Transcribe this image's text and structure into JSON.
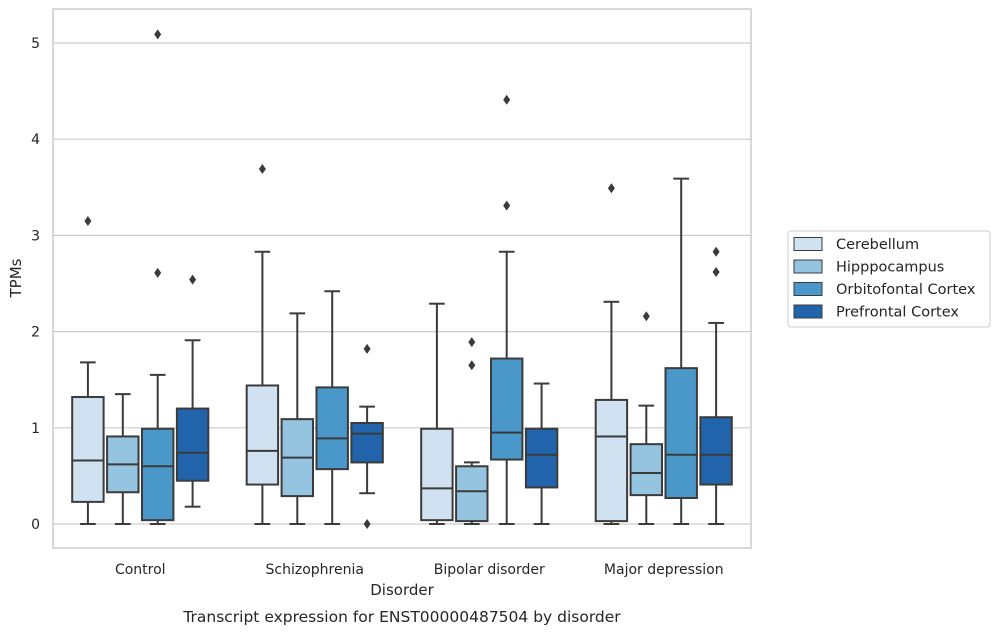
{
  "chart_data": {
    "type": "box",
    "xlabel": "Disorder",
    "ylabel": "TPMs",
    "caption": "Transcript expression for ENST00000487504 by disorder",
    "ylim": [
      -0.25,
      5.35
    ],
    "yticks": [
      0,
      1,
      2,
      3,
      4,
      5
    ],
    "grid": "horizontal",
    "legend_position": "right",
    "categories": [
      "Control",
      "Schizophrenia",
      "Bipolar disorder",
      "Major depression"
    ],
    "series": [
      {
        "name": "Cerebellum",
        "color": "#d0e1f2",
        "boxes": [
          {
            "whislo": 0.0,
            "q1": 0.23,
            "med": 0.66,
            "q3": 1.32,
            "whishi": 1.68,
            "fliers": [
              3.15
            ]
          },
          {
            "whislo": 0.0,
            "q1": 0.41,
            "med": 0.76,
            "q3": 1.44,
            "whishi": 2.83,
            "fliers": [
              3.69
            ]
          },
          {
            "whislo": 0.0,
            "q1": 0.04,
            "med": 0.37,
            "q3": 0.99,
            "whishi": 2.29,
            "fliers": []
          },
          {
            "whislo": 0.0,
            "q1": 0.03,
            "med": 0.91,
            "q3": 1.29,
            "whishi": 2.31,
            "fliers": [
              3.49
            ]
          }
        ]
      },
      {
        "name": "Hipppocampus",
        "color": "#94c4df",
        "boxes": [
          {
            "whislo": 0.0,
            "q1": 0.33,
            "med": 0.62,
            "q3": 0.91,
            "whishi": 1.35,
            "fliers": []
          },
          {
            "whislo": 0.0,
            "q1": 0.29,
            "med": 0.69,
            "q3": 1.09,
            "whishi": 2.19,
            "fliers": []
          },
          {
            "whislo": 0.0,
            "q1": 0.03,
            "med": 0.34,
            "q3": 0.6,
            "whishi": 0.64,
            "fliers": [
              1.65,
              1.89
            ]
          },
          {
            "whislo": 0.0,
            "q1": 0.3,
            "med": 0.53,
            "q3": 0.83,
            "whishi": 1.23,
            "fliers": [
              2.16
            ]
          }
        ]
      },
      {
        "name": "Orbitofontal Cortex",
        "color": "#4a98c9",
        "boxes": [
          {
            "whislo": 0.0,
            "q1": 0.04,
            "med": 0.6,
            "q3": 0.99,
            "whishi": 1.55,
            "fliers": [
              2.61,
              5.09
            ]
          },
          {
            "whislo": 0.0,
            "q1": 0.57,
            "med": 0.89,
            "q3": 1.42,
            "whishi": 2.42,
            "fliers": []
          },
          {
            "whislo": 0.0,
            "q1": 0.67,
            "med": 0.95,
            "q3": 1.72,
            "whishi": 2.83,
            "fliers": [
              3.31,
              4.41
            ]
          },
          {
            "whislo": 0.0,
            "q1": 0.27,
            "med": 0.72,
            "q3": 1.62,
            "whishi": 3.59,
            "fliers": []
          }
        ]
      },
      {
        "name": "Prefrontal Cortex",
        "color": "#2164ab",
        "boxes": [
          {
            "whislo": 0.18,
            "q1": 0.45,
            "med": 0.74,
            "q3": 1.2,
            "whishi": 1.91,
            "fliers": [
              2.54
            ]
          },
          {
            "whislo": 0.32,
            "q1": 0.64,
            "med": 0.94,
            "q3": 1.05,
            "whishi": 1.22,
            "fliers": [
              0.0,
              1.82
            ]
          },
          {
            "whislo": 0.0,
            "q1": 0.38,
            "med": 0.72,
            "q3": 0.99,
            "whishi": 1.46,
            "fliers": []
          },
          {
            "whislo": 0.0,
            "q1": 0.41,
            "med": 0.72,
            "q3": 1.11,
            "whishi": 2.09,
            "fliers": [
              2.62,
              2.83
            ]
          }
        ]
      }
    ]
  }
}
